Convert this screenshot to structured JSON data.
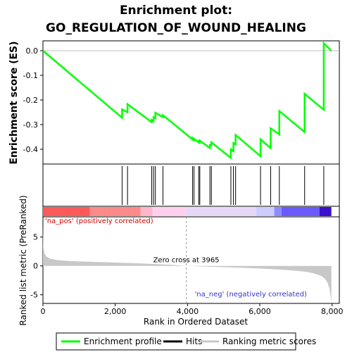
{
  "chart_data": {
    "type": "line",
    "title_line1": "Enrichment plot:",
    "title_line2": "GO_REGULATION_OF_WOUND_HEALING",
    "ylabel_top": "Enrichment score (ES)",
    "ylabel_bottom": "Ranked list metric (PreRanked)",
    "xlabel": "Rank in Ordered Dataset",
    "xlim": [
      0,
      8200
    ],
    "ylim_top": [
      -0.46,
      0.04
    ],
    "ylim_bottom": [
      -6.5,
      8.5
    ],
    "x_ticks": [
      0,
      2000,
      4000,
      6000,
      8000
    ],
    "x_tick_labels": [
      "0",
      "2,000",
      "4,000",
      "6,000",
      "8,000"
    ],
    "y_ticks_top": [
      0.0,
      -0.1,
      -0.2,
      -0.3,
      -0.4
    ],
    "y_tick_labels_top": [
      "0.0",
      "-0.1",
      "-0.2",
      "-0.3",
      "-0.4"
    ],
    "y_ticks_bottom": [
      5,
      0,
      -5
    ],
    "y_tick_labels_bottom": [
      "5",
      "0",
      "-5"
    ],
    "zero_cross_rank": 3965,
    "zero_cross_label": "Zero cross at 3965",
    "pos_label": "'na_pos' (positively correlated)",
    "neg_label": "'na_neg' (negatively correlated)",
    "n_genes": 7980,
    "hits": [
      2190,
      2340,
      3010,
      3060,
      3110,
      3320,
      4140,
      4180,
      4310,
      4340,
      4620,
      4660,
      5200,
      5270,
      5330,
      6020,
      6300,
      6540,
      7240,
      7770
    ],
    "enrichment_profile": [
      [
        0,
        0.0
      ],
      [
        2189,
        -0.272
      ],
      [
        2190,
        -0.238
      ],
      [
        2339,
        -0.25
      ],
      [
        2340,
        -0.217
      ],
      [
        3009,
        -0.29
      ],
      [
        3010,
        -0.281
      ],
      [
        3059,
        -0.286
      ],
      [
        3060,
        -0.27
      ],
      [
        3109,
        -0.274
      ],
      [
        3110,
        -0.252
      ],
      [
        3319,
        -0.27
      ],
      [
        3320,
        -0.262
      ],
      [
        4139,
        -0.36
      ],
      [
        4140,
        -0.355
      ],
      [
        4179,
        -0.362
      ],
      [
        4180,
        -0.358
      ],
      [
        4309,
        -0.372
      ],
      [
        4310,
        -0.368
      ],
      [
        4339,
        -0.371
      ],
      [
        4340,
        -0.365
      ],
      [
        4619,
        -0.395
      ],
      [
        4620,
        -0.382
      ],
      [
        4659,
        -0.384
      ],
      [
        4660,
        -0.372
      ],
      [
        5199,
        -0.435
      ],
      [
        5200,
        -0.4
      ],
      [
        5269,
        -0.408
      ],
      [
        5270,
        -0.375
      ],
      [
        5329,
        -0.38
      ],
      [
        5330,
        -0.342
      ],
      [
        6019,
        -0.428
      ],
      [
        6020,
        -0.36
      ],
      [
        6299,
        -0.395
      ],
      [
        6300,
        -0.315
      ],
      [
        6539,
        -0.34
      ],
      [
        6540,
        -0.245
      ],
      [
        7239,
        -0.33
      ],
      [
        7240,
        -0.175
      ],
      [
        7769,
        -0.24
      ],
      [
        7770,
        0.03
      ],
      [
        7980,
        0.0
      ]
    ],
    "heatmap_colors": [
      "#ff5a5a",
      "#ff8a8a",
      "#ffb6c8",
      "#ffd0ee",
      "#e8d8f8",
      "#ccccff",
      "#8c8cff",
      "#6a5aff",
      "#3a10cc"
    ],
    "heatmap_bounds": [
      0,
      1300,
      2700,
      3030,
      3950,
      5900,
      6400,
      6600,
      7650,
      7980
    ],
    "ranked_metric": [
      [
        0,
        7.2
      ],
      [
        10,
        3.3
      ],
      [
        40,
        2.2
      ],
      [
        100,
        1.6
      ],
      [
        200,
        1.25
      ],
      [
        400,
        1.0
      ],
      [
        700,
        0.85
      ],
      [
        1000,
        0.78
      ],
      [
        1500,
        0.68
      ],
      [
        2000,
        0.58
      ],
      [
        2500,
        0.48
      ],
      [
        3000,
        0.35
      ],
      [
        3500,
        0.2
      ],
      [
        3965,
        0.0
      ],
      [
        4500,
        -0.12
      ],
      [
        5000,
        -0.22
      ],
      [
        5500,
        -0.33
      ],
      [
        6000,
        -0.45
      ],
      [
        6500,
        -0.62
      ],
      [
        7000,
        -0.85
      ],
      [
        7300,
        -1.05
      ],
      [
        7500,
        -1.3
      ],
      [
        7700,
        -1.75
      ],
      [
        7800,
        -2.2
      ],
      [
        7880,
        -3.0
      ],
      [
        7930,
        -4.0
      ],
      [
        7960,
        -5.3
      ],
      [
        7980,
        -6.3
      ]
    ],
    "colors": {
      "profile": "#00ff00",
      "hits": "#000000",
      "metric_fill": "#c8c8c8",
      "axis": "#000000",
      "pos_text": "#cc0000",
      "neg_text": "#3333cc"
    }
  },
  "legend": {
    "items": [
      {
        "label": "Enrichment profile",
        "color": "#00ff00"
      },
      {
        "label": "Hits",
        "color": "#000000"
      },
      {
        "label": "Ranking metric scores",
        "color": "#c8c8c8"
      }
    ]
  }
}
